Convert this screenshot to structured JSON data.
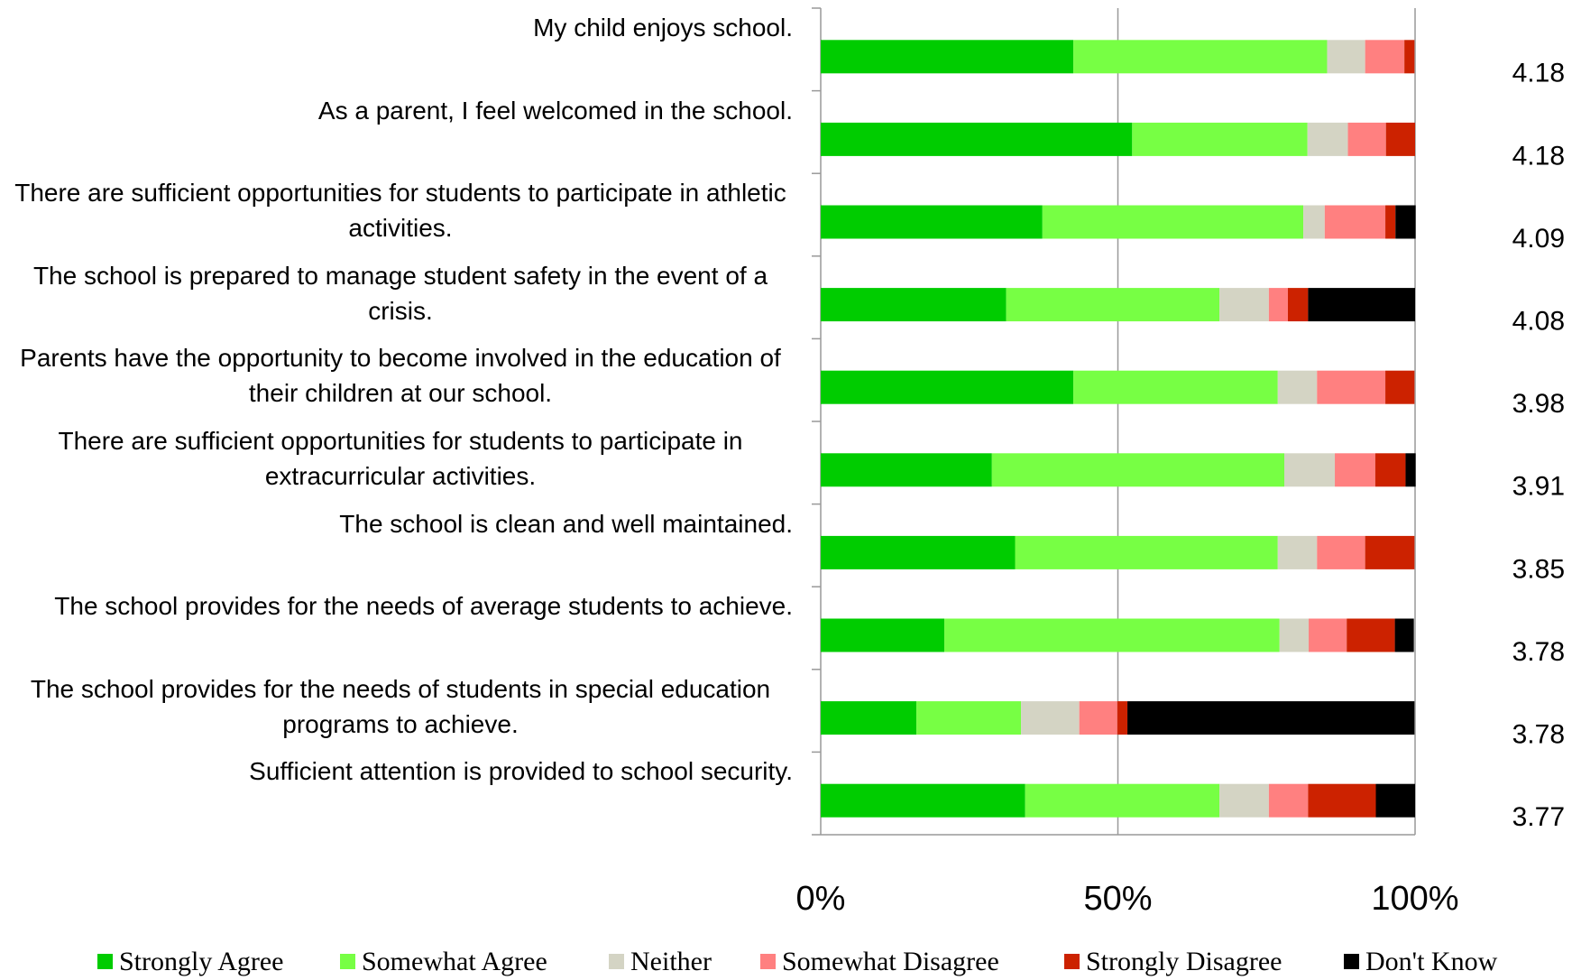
{
  "chart_data": {
    "type": "stacked-bar-horizontal",
    "categories": [
      "My child enjoys school.",
      "As a parent, I feel welcomed in the school.",
      "There are sufficient opportunities for students to participate in athletic activities.",
      "The school is prepared to manage student safety in the event of a crisis.",
      "Parents have the opportunity to become involved in the education of their children at our school.",
      "There are sufficient opportunities for students to participate in extracurricular activities.",
      "The school is clean and well maintained.",
      "The school provides for the needs of average students to achieve.",
      "The school provides for the needs of students in special education programs to achieve.",
      "Sufficient attention is provided to school security."
    ],
    "series": [
      {
        "name": "Strongly Agree",
        "color": "#00cc00",
        "values": [
          42.5,
          52.4,
          37.3,
          31.2,
          42.5,
          28.8,
          32.7,
          20.8,
          16.1,
          34.4
        ]
      },
      {
        "name": "Somewhat Agree",
        "color": "#77ff44",
        "values": [
          42.7,
          29.5,
          43.9,
          35.9,
          34.4,
          49.2,
          44.2,
          56.4,
          17.6,
          32.7
        ]
      },
      {
        "name": "Neither",
        "color": "#d4d4c4",
        "values": [
          6.4,
          6.8,
          3.6,
          8.3,
          6.6,
          8.5,
          6.6,
          4.9,
          9.8,
          8.3
        ]
      },
      {
        "name": "Somewhat Disagree",
        "color": "#ff8080",
        "values": [
          6.6,
          6.4,
          10.2,
          3.2,
          11.5,
          6.8,
          8.1,
          6.4,
          6.4,
          6.6
        ]
      },
      {
        "name": "Strongly Disagree",
        "color": "#cc2200",
        "values": [
          1.7,
          4.9,
          1.7,
          3.4,
          4.9,
          5.1,
          8.3,
          8.1,
          1.7,
          11.4
        ]
      },
      {
        "name": "Don't Know",
        "color": "#000000",
        "values": [
          0,
          0,
          3.4,
          18.0,
          0,
          1.7,
          0,
          3.2,
          48.3,
          6.6
        ]
      }
    ],
    "scores": [
      4.18,
      4.18,
      4.09,
      4.08,
      3.98,
      3.91,
      3.85,
      3.78,
      3.78,
      3.77
    ],
    "xlim": [
      0,
      100
    ],
    "xticks": [
      {
        "value": 0,
        "label": "0%"
      },
      {
        "value": 50,
        "label": "50%"
      },
      {
        "value": 100,
        "label": "100%"
      }
    ],
    "grid": true
  }
}
